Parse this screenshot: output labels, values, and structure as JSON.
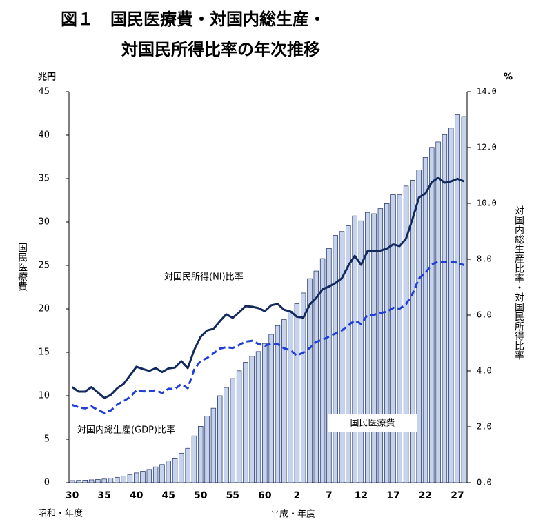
{
  "chart_data": {
    "type": "bar",
    "title": [
      "図１　国民医療費・対国内総生産・",
      "対国民所得比率の年次推移"
    ],
    "y_unit": "兆円",
    "y2_unit": "%",
    "y_label": "国民医療費",
    "y2_label": "対国内総生産比率・対国民所得比率",
    "x_group_labels": [
      "昭和・年度",
      "平成・年度"
    ],
    "categories": [
      "30",
      null,
      null,
      null,
      null,
      "35",
      null,
      null,
      null,
      null,
      "40",
      null,
      null,
      null,
      null,
      "45",
      null,
      null,
      null,
      null,
      "50",
      null,
      null,
      null,
      null,
      "55",
      null,
      null,
      null,
      null,
      "60",
      null,
      null,
      null,
      null,
      "2",
      null,
      null,
      null,
      null,
      "7",
      null,
      null,
      null,
      null,
      "12",
      null,
      null,
      null,
      null,
      "17",
      null,
      null,
      null,
      null,
      "22",
      null,
      null,
      null,
      null,
      "27",
      null
    ],
    "series": [
      {
        "name": "国民医療費",
        "type": "bar",
        "axis": "y",
        "color": "#c5d3ee",
        "edge_color": "#1a2a5a",
        "values": [
          0.24,
          0.26,
          0.29,
          0.32,
          0.36,
          0.41,
          0.51,
          0.61,
          0.74,
          0.94,
          1.12,
          1.31,
          1.52,
          1.81,
          2.08,
          2.5,
          2.75,
          3.39,
          3.95,
          5.38,
          6.48,
          7.66,
          8.56,
          10.0,
          10.95,
          11.98,
          12.87,
          13.85,
          14.54,
          15.09,
          16.02,
          17.07,
          18.08,
          18.76,
          19.73,
          20.61,
          21.83,
          23.48,
          24.36,
          25.79,
          26.96,
          28.45,
          28.91,
          29.58,
          30.7,
          30.14,
          31.1,
          30.95,
          31.54,
          32.11,
          33.13,
          33.12,
          34.14,
          34.81,
          36.0,
          37.42,
          38.59,
          39.21,
          40.06,
          40.81,
          42.36,
          42.14
        ]
      },
      {
        "name": "対国民所得(NI)比率",
        "type": "line",
        "axis": "y2",
        "color": "#12295e",
        "dashed": false,
        "values": [
          3.42,
          3.26,
          3.26,
          3.42,
          3.23,
          3.03,
          3.14,
          3.38,
          3.53,
          3.84,
          4.15,
          4.07,
          4.0,
          4.1,
          3.96,
          4.09,
          4.12,
          4.35,
          4.1,
          4.75,
          5.22,
          5.45,
          5.51,
          5.78,
          6.03,
          5.9,
          6.1,
          6.32,
          6.3,
          6.25,
          6.14,
          6.35,
          6.4,
          6.19,
          6.13,
          5.94,
          5.91,
          6.38,
          6.61,
          6.93,
          7.02,
          7.15,
          7.32,
          7.77,
          8.12,
          7.8,
          8.29,
          8.3,
          8.31,
          8.38,
          8.53,
          8.47,
          8.74,
          9.44,
          10.21,
          10.35,
          10.76,
          10.92,
          10.74,
          10.79,
          10.88,
          10.79
        ]
      },
      {
        "name": "対国内総生産(GDP)比率",
        "type": "line",
        "axis": "y2",
        "color": "#1f3fd6",
        "dashed": true,
        "values": [
          2.78,
          2.7,
          2.66,
          2.73,
          2.6,
          2.5,
          2.58,
          2.79,
          2.92,
          3.06,
          3.31,
          3.27,
          3.27,
          3.31,
          3.21,
          3.36,
          3.35,
          3.53,
          3.38,
          4.05,
          4.36,
          4.46,
          4.63,
          4.8,
          4.85,
          4.82,
          4.93,
          5.05,
          5.08,
          4.97,
          4.9,
          4.98,
          4.96,
          4.81,
          4.74,
          4.55,
          4.66,
          4.82,
          5.04,
          5.12,
          5.23,
          5.34,
          5.45,
          5.63,
          5.81,
          5.68,
          6.01,
          6.01,
          6.08,
          6.12,
          6.26,
          6.23,
          6.39,
          6.76,
          7.31,
          7.51,
          7.81,
          7.92,
          7.89,
          7.9,
          7.88,
          7.79
        ]
      }
    ],
    "ylim": [
      0,
      45
    ],
    "yticks": [
      0,
      5,
      10,
      15,
      20,
      25,
      30,
      35,
      40,
      45
    ],
    "y2lim": [
      0,
      14
    ],
    "y2ticks": [
      {
        "value": 0,
        "label": "0.0"
      },
      {
        "value": 2,
        "label": "2.0"
      },
      {
        "value": 4,
        "label": "4.0"
      },
      {
        "value": 6,
        "label": "6.0"
      },
      {
        "value": 8,
        "label": "8.0"
      },
      {
        "value": 10,
        "label": "10.0"
      },
      {
        "value": 12,
        "label": "12.0"
      },
      {
        "value": 14,
        "label": "14.0"
      }
    ]
  }
}
